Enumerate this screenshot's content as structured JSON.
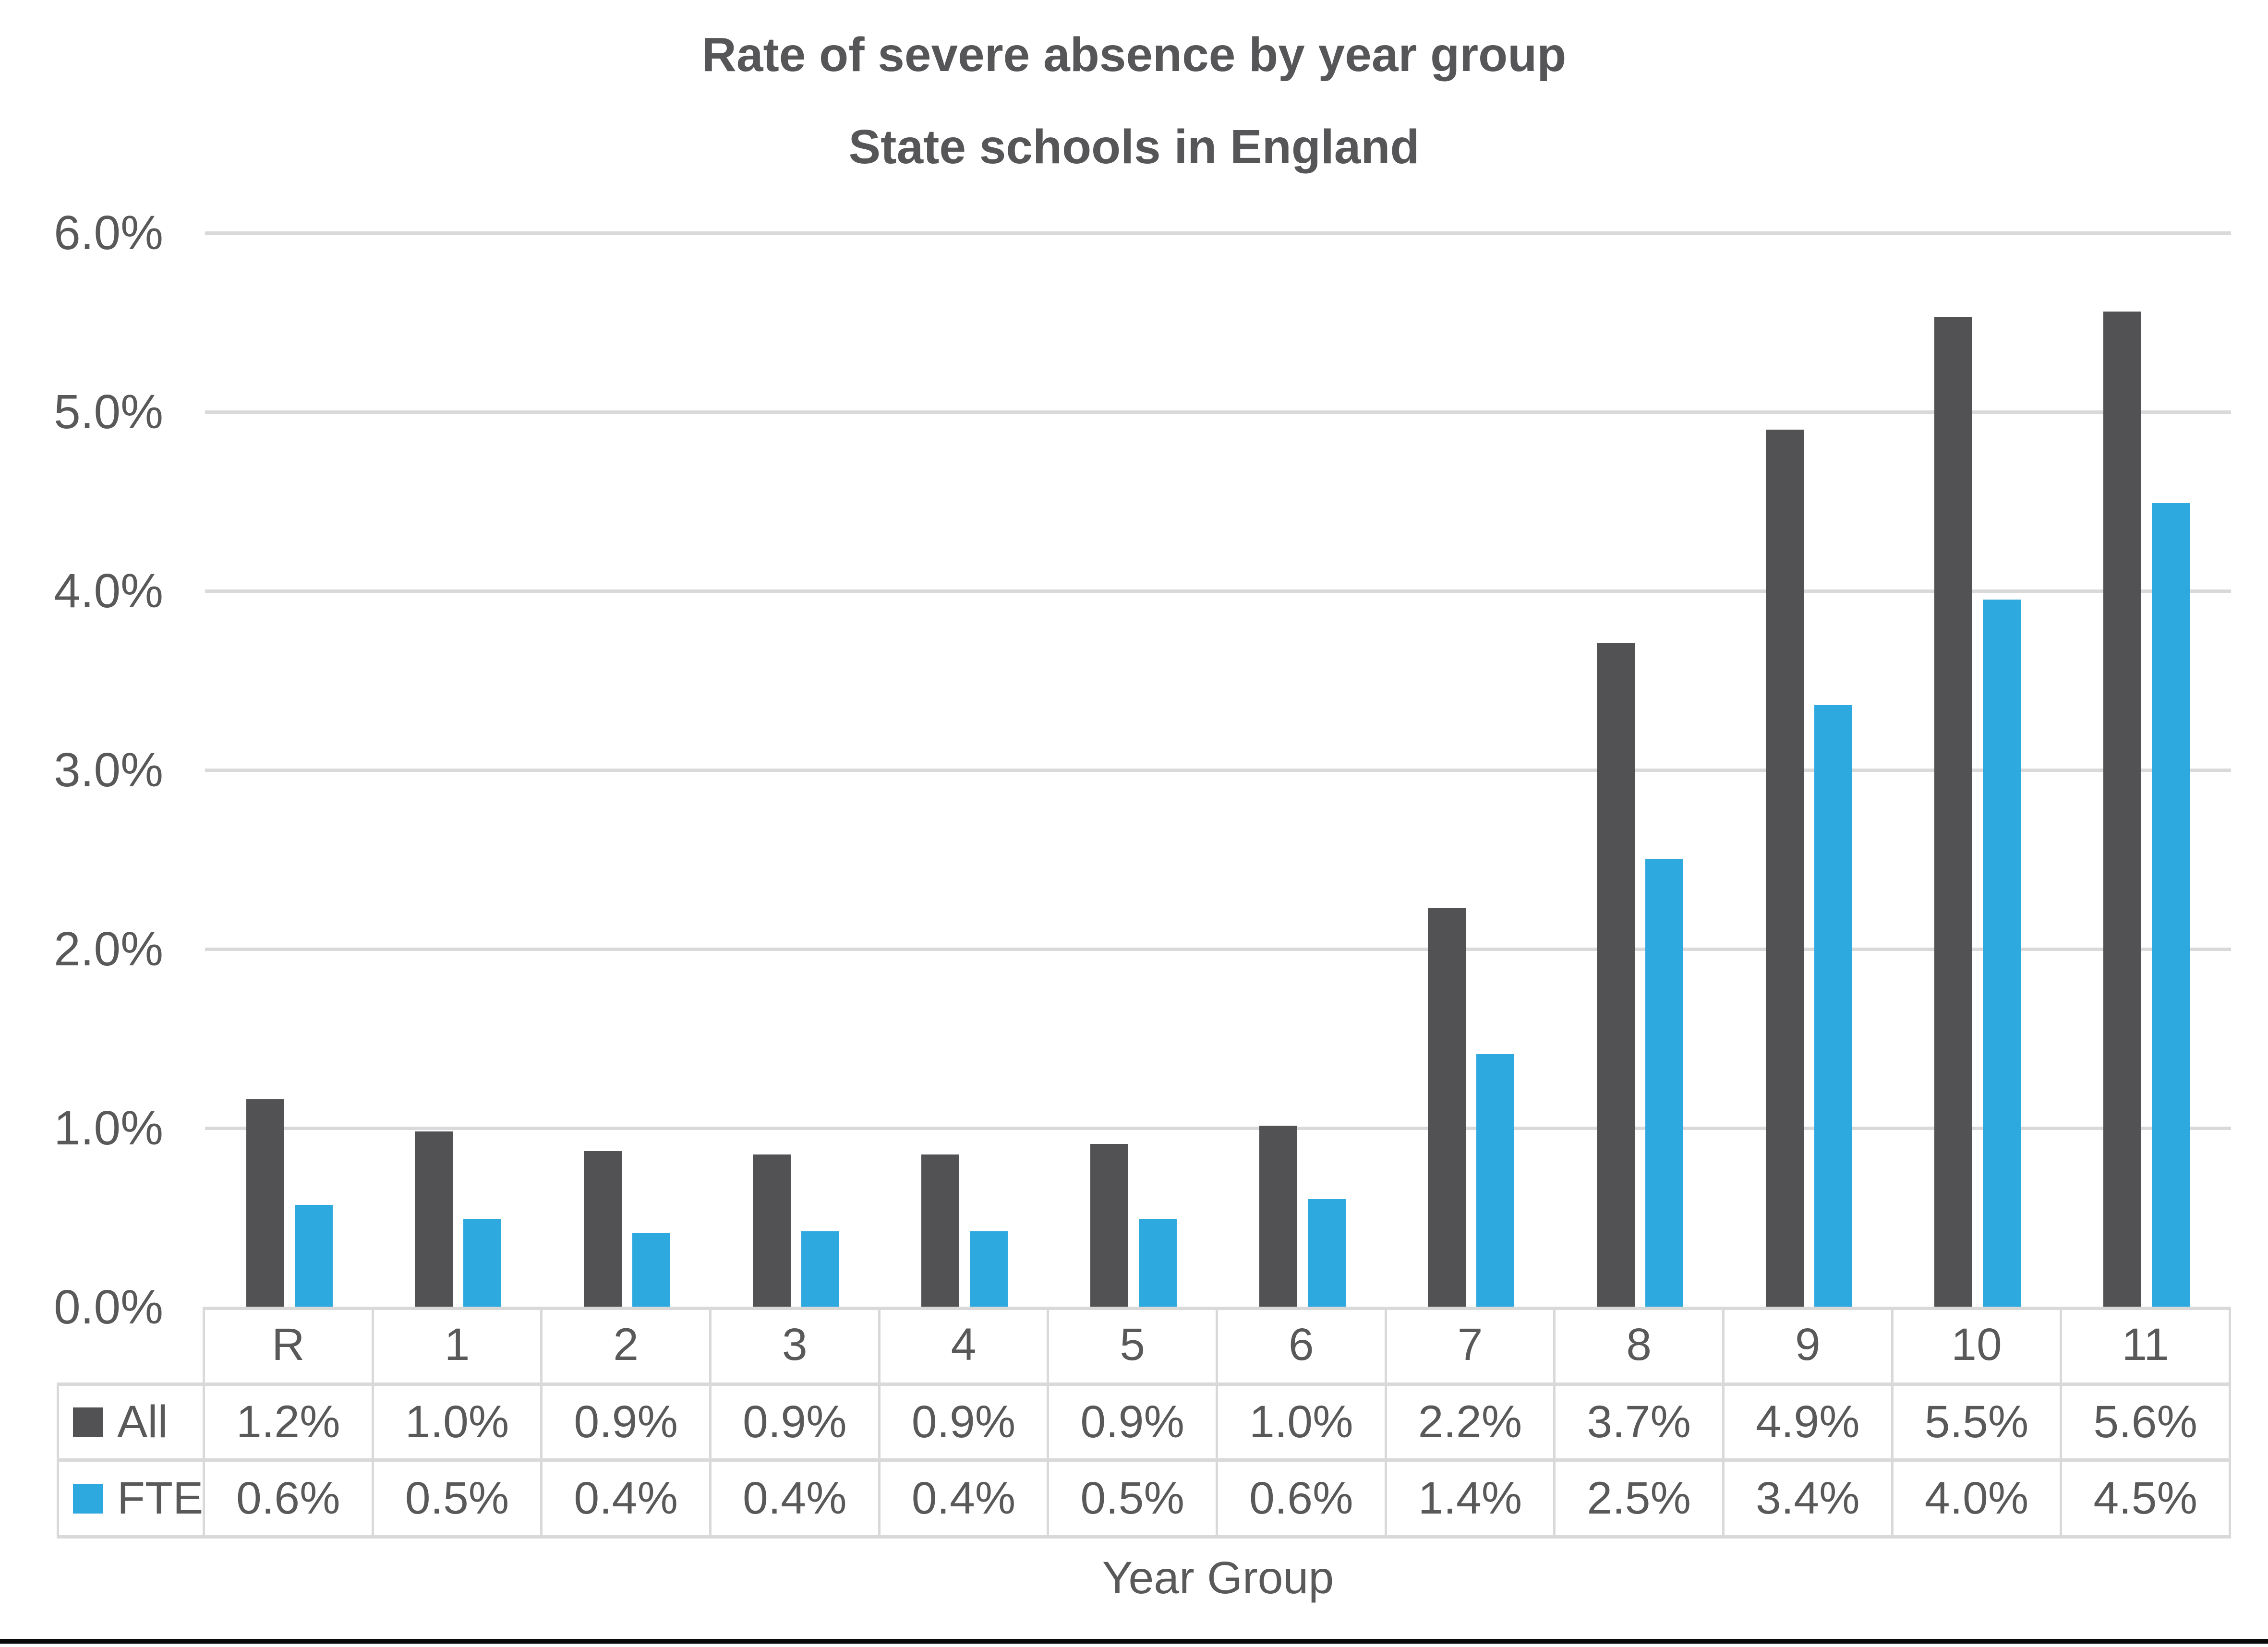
{
  "title": {
    "line1": "Rate of severe absence by year group",
    "line2": "State schools in England"
  },
  "chart_data": {
    "type": "bar",
    "title": "Rate of severe absence by year group",
    "subtitle": "State schools in England",
    "categories": [
      "R",
      "1",
      "2",
      "3",
      "4",
      "5",
      "6",
      "7",
      "8",
      "9",
      "10",
      "11"
    ],
    "series": [
      {
        "name": "All",
        "color": "#525254",
        "values": [
          1.2,
          1.0,
          0.9,
          0.9,
          0.9,
          0.9,
          1.0,
          2.2,
          3.7,
          4.9,
          5.5,
          5.6
        ],
        "labels": [
          "1.2%",
          "1.0%",
          "0.9%",
          "0.9%",
          "0.9%",
          "0.9%",
          "1.0%",
          "2.2%",
          "3.7%",
          "4.9%",
          "5.5%",
          "5.6%"
        ],
        "bar_values": [
          1.16,
          0.98,
          0.87,
          0.85,
          0.85,
          0.91,
          1.01,
          2.23,
          3.71,
          4.9,
          5.53,
          5.56
        ]
      },
      {
        "name": "FTE",
        "color": "#2EA9E0",
        "values": [
          0.6,
          0.5,
          0.4,
          0.4,
          0.4,
          0.5,
          0.6,
          1.4,
          2.5,
          3.4,
          4.0,
          4.5
        ],
        "labels": [
          "0.6%",
          "0.5%",
          "0.4%",
          "0.4%",
          "0.4%",
          "0.5%",
          "0.6%",
          "1.4%",
          "2.5%",
          "3.4%",
          "4.0%",
          "4.5%"
        ],
        "bar_values": [
          0.57,
          0.49,
          0.41,
          0.42,
          0.42,
          0.49,
          0.6,
          1.41,
          2.5,
          3.36,
          3.95,
          4.49
        ]
      }
    ],
    "xlabel": "Year Group",
    "ylabel": "",
    "ylim": [
      0,
      6
    ],
    "yticks": [
      "6.0%",
      "5.0%",
      "4.0%",
      "3.0%",
      "2.0%",
      "1.0%",
      "0.0%"
    ],
    "grid": true,
    "legend_position": "data-table-left"
  },
  "colors": {
    "all_series": "#525254",
    "fte_series": "#2EA9E0",
    "gridline": "#D9D9D9",
    "table_border": "#D9D9D9",
    "text": "#595959",
    "title_text": "#565658",
    "bottom_rule": "#0A0A0A",
    "background": "#FFFFFF"
  }
}
